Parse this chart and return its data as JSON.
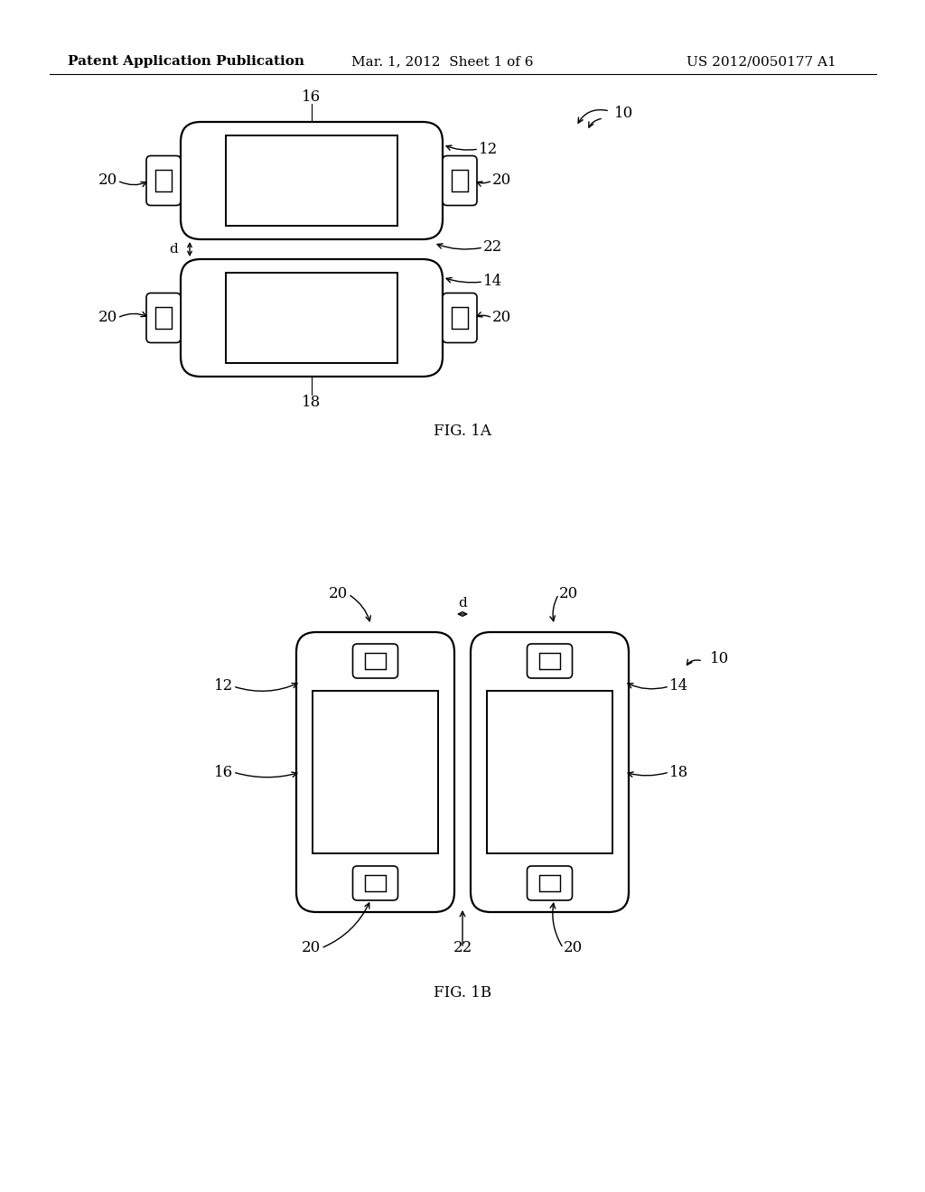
{
  "bg_color": "#ffffff",
  "line_color": "#000000",
  "header_left": "Patent Application Publication",
  "header_mid": "Mar. 1, 2012  Sheet 1 of 6",
  "header_right": "US 2012/0050177 A1",
  "fig1a_label": "FIG. 1A",
  "fig1b_label": "FIG. 1B"
}
